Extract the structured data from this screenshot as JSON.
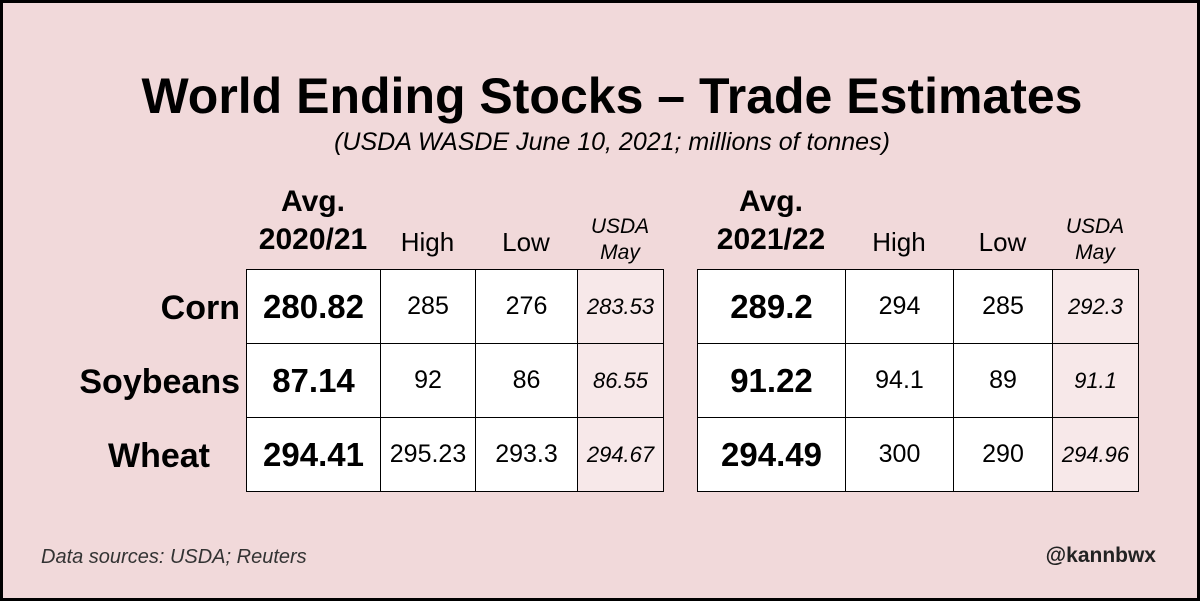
{
  "chart_data": {
    "type": "table",
    "title": "World Ending Stocks – Trade Estimates",
    "subtitle": "(USDA WASDE June 10, 2021; millions of tonnes)",
    "row_labels": [
      "Corn",
      "Soybeans",
      "Wheat"
    ],
    "tables": [
      {
        "avg_line1": "Avg.",
        "avg_line2": "2020/21",
        "high_label": "High",
        "low_label": "Low",
        "usda_line1": "USDA",
        "usda_line2": "May",
        "rows": [
          {
            "avg": "280.82",
            "high": "285",
            "low": "276",
            "usda": "283.53"
          },
          {
            "avg": "87.14",
            "high": "92",
            "low": "86",
            "usda": "86.55"
          },
          {
            "avg": "294.41",
            "high": "295.23",
            "low": "293.3",
            "usda": "294.67"
          }
        ]
      },
      {
        "avg_line1": "Avg.",
        "avg_line2": "2021/22",
        "high_label": "High",
        "low_label": "Low",
        "usda_line1": "USDA",
        "usda_line2": "May",
        "rows": [
          {
            "avg": "289.2",
            "high": "294",
            "low": "285",
            "usda": "292.3"
          },
          {
            "avg": "91.22",
            "high": "94.1",
            "low": "89",
            "usda": "91.1"
          },
          {
            "avg": "294.49",
            "high": "300",
            "low": "290",
            "usda": "294.96"
          }
        ]
      }
    ]
  },
  "footer": {
    "source": "Data sources: USDA; Reuters",
    "handle": "@kannbwx"
  },
  "colors": {
    "background": "#f1d9da",
    "usda_cell": "#f7e8e9",
    "cell": "#ffffff"
  }
}
